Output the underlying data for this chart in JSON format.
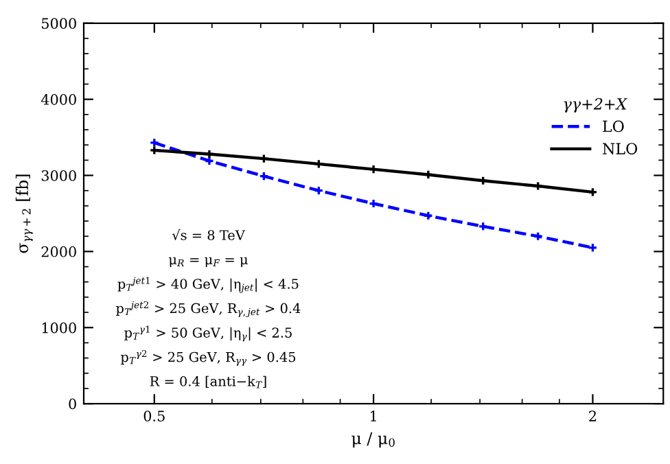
{
  "chart_data": {
    "type": "line",
    "xlabel": "μ / μ$_{0}$",
    "ylabel": "σ$_{γγ+2}$ [fb]",
    "legend_title": "γγ+2+X",
    "x": [
      0.5,
      0.595,
      0.707,
      0.841,
      1,
      1.189,
      1.414,
      1.682,
      2
    ],
    "series": [
      {
        "name": "LO",
        "color": "#0000ff",
        "line_style": "dashed",
        "values": [
          3430,
          3190,
          2990,
          2800,
          2630,
          2470,
          2330,
          2200,
          2050
        ]
      },
      {
        "name": "NLO",
        "color": "#000000",
        "line_style": "solid",
        "values": [
          3330,
          3280,
          3220,
          3150,
          3080,
          3010,
          2930,
          2860,
          2780
        ]
      }
    ],
    "marker": "cross",
    "log": "x",
    "xlim": [
      0.4,
      2.5
    ],
    "xticks": [
      0.5,
      1,
      2
    ],
    "ylim": [
      0,
      5000
    ],
    "yticks": [
      0,
      1000,
      2000,
      3000,
      4000,
      5000
    ],
    "grid": false,
    "legend": "top right",
    "annotations": [
      "√s = 8 TeV",
      "μ$_{R}$ = μ$_{F}$ = μ",
      "p$_{T}$$^{jet1}$ > 40 GeV, |η$_{jet}$| < 4.5",
      "p$_{T}$$^{jet2}$ > 25 GeV, R$_{γ,jet}$ > 0.4",
      "p$_{T}$$^{γ1}$ > 50 GeV, |η$_{γ}$| < 2.5",
      "p$_{T}$$^{γ2}$ > 25 GeV, R$_{γγ}$ > 0.45",
      "R = 0.4 [anti−k$_{T}$]"
    ]
  }
}
